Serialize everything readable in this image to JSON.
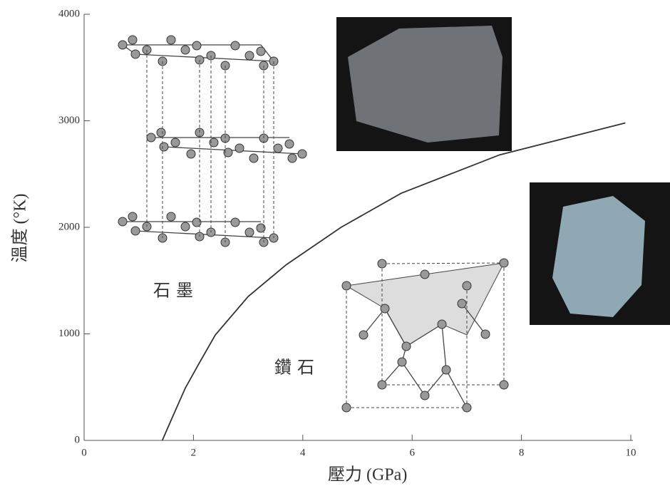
{
  "chart_data": {
    "type": "line",
    "x_label": "壓力 (GPa)",
    "y_label": "溫度 (°K)",
    "annotations": [
      "石墨",
      "鑽石"
    ],
    "series": [
      {
        "color": "#333333",
        "x": [
          1.43,
          1.6,
          1.85,
          2.1,
          2.4,
          3,
          3.7,
          4.7,
          5.8,
          7.6,
          9.9
        ],
        "values": [
          0,
          200,
          490,
          720,
          990,
          1350,
          1650,
          2000,
          2320,
          2680,
          2980
        ]
      }
    ],
    "xlim": [
      0,
      10
    ],
    "xticks": [
      0,
      2,
      4,
      6,
      8,
      10
    ],
    "ylim": [
      0,
      4000
    ],
    "yticks": [
      0,
      1000,
      2000,
      3000,
      4000
    ],
    "grid": false
  }
}
